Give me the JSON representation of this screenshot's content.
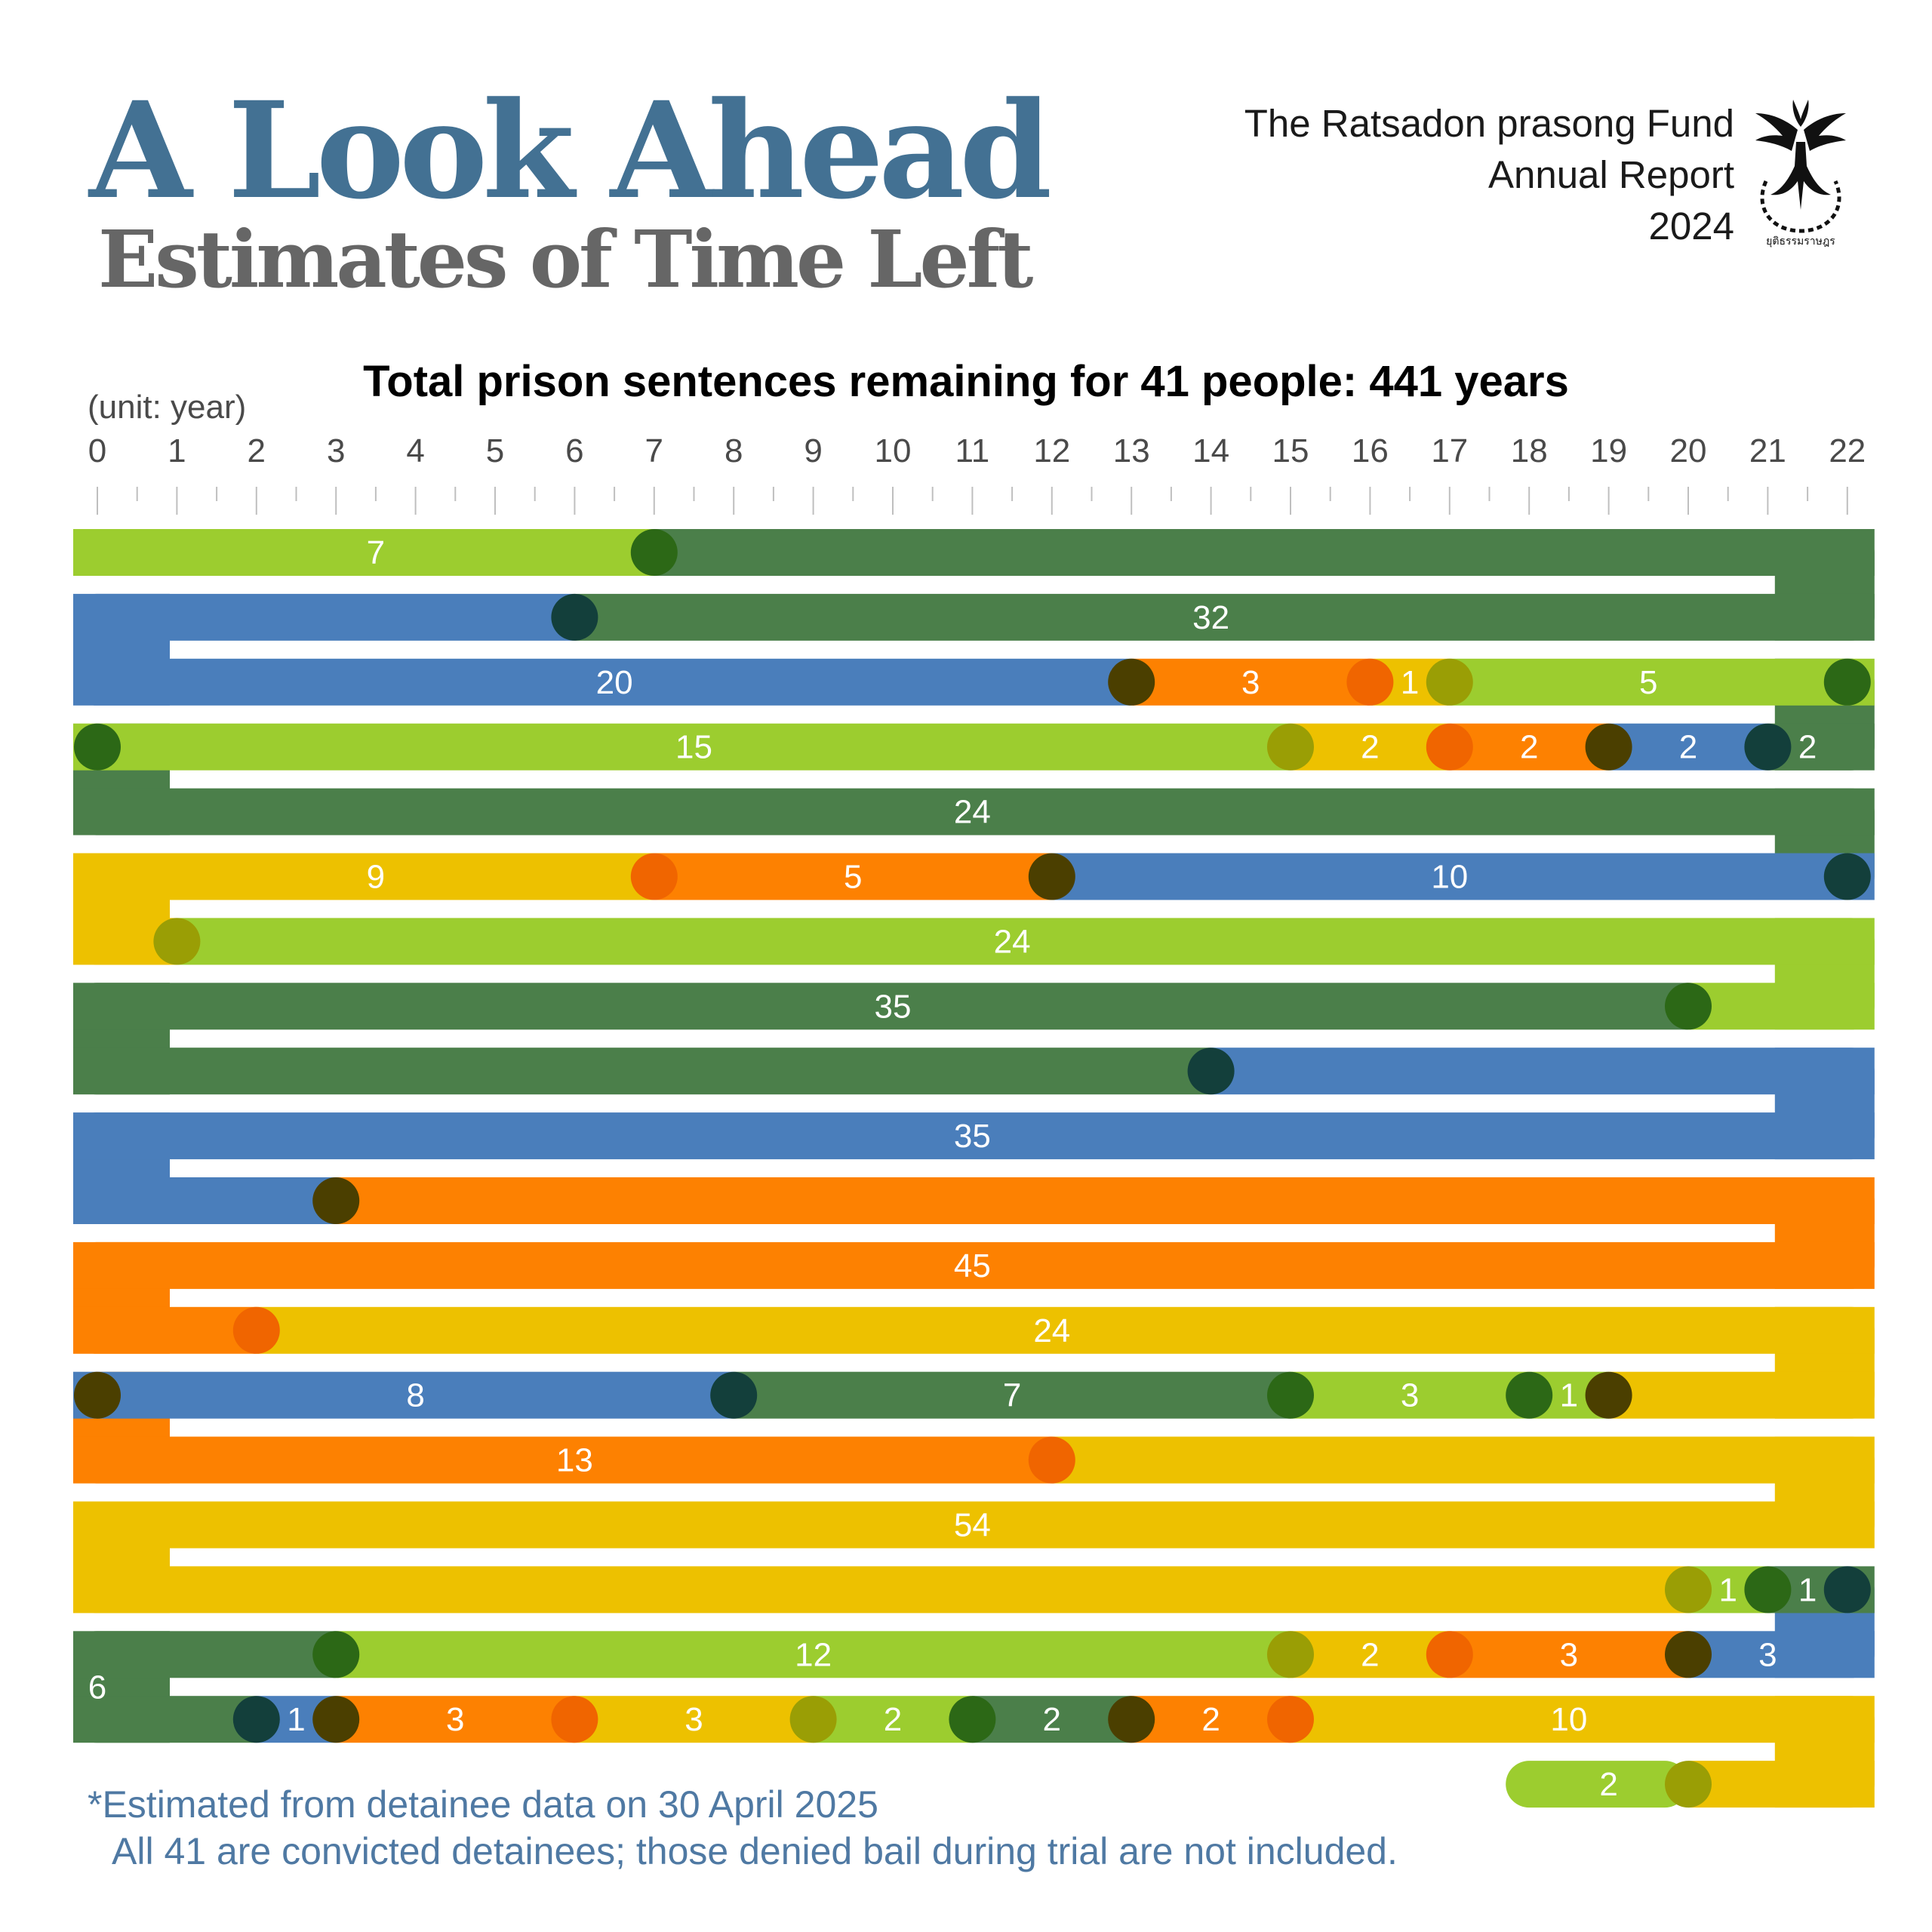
{
  "header": {
    "title": "A Look Ahead",
    "subtitle": "Estimates of Time Left",
    "org_line1": "The Ratsadon prasong Fund",
    "org_line2": "Annual Report",
    "org_line3": "2024",
    "logo_caption": "ยุติธรรมราษฎร"
  },
  "footnote": {
    "line1": "*Estimated from detainee data on 30 April 2025",
    "line2": "All 41 are convicted detainees; those denied bail during trial are not included."
  },
  "colors": {
    "lime": "#9ccd2f",
    "green": "#4b7f4a",
    "blue": "#4a7ebb",
    "orange": "#fd8101",
    "yellow": "#edc100",
    "dot_olive": "#9a9e05",
    "dot_green": "#2c6816",
    "dot_teal": "#133f3b",
    "dot_brown": "#4b3f00",
    "dot_orange": "#f06500"
  },
  "chart_data": {
    "type": "snake-bar",
    "title": "Total prison sentences remaining for 41 people: 441 years",
    "unit_label": "(unit: year)",
    "x_axis": {
      "min": 0,
      "max": 22,
      "ticks": [
        0,
        1,
        2,
        3,
        4,
        5,
        6,
        7,
        8,
        9,
        10,
        11,
        12,
        13,
        14,
        15,
        16,
        17,
        18,
        19,
        20,
        21,
        22
      ]
    },
    "total_people": 41,
    "total_years": 441,
    "rows": [
      {
        "row": 1,
        "segments": [
          {
            "from": 0,
            "to": 7,
            "color": "lime",
            "label": "7"
          },
          {
            "from": 7,
            "to": 22,
            "color": "green",
            "label": ""
          }
        ],
        "dots": [
          {
            "x": 7,
            "color": "dot_green"
          }
        ]
      },
      {
        "row": 2,
        "segments": [
          {
            "from": 0,
            "to": 6,
            "color": "blue",
            "label": ""
          },
          {
            "from": 6,
            "to": 22,
            "color": "green",
            "label": "32"
          }
        ],
        "dots": [
          {
            "x": 6,
            "color": "dot_teal"
          }
        ]
      },
      {
        "row": 3,
        "segments": [
          {
            "from": 0,
            "to": 13,
            "color": "blue",
            "label": "20"
          },
          {
            "from": 13,
            "to": 16,
            "color": "orange",
            "label": "3"
          },
          {
            "from": 16,
            "to": 17,
            "color": "yellow",
            "label": "1"
          },
          {
            "from": 17,
            "to": 22,
            "color": "lime",
            "label": "5"
          }
        ],
        "dots": [
          {
            "x": 13,
            "color": "dot_brown"
          },
          {
            "x": 16,
            "color": "dot_orange"
          },
          {
            "x": 17,
            "color": "dot_olive"
          },
          {
            "x": 22,
            "color": "dot_green"
          }
        ]
      },
      {
        "row": 4,
        "segments": [
          {
            "from": 0,
            "to": 15,
            "color": "lime",
            "label": "15"
          },
          {
            "from": 15,
            "to": 17,
            "color": "yellow",
            "label": "2"
          },
          {
            "from": 17,
            "to": 19,
            "color": "orange",
            "label": "2"
          },
          {
            "from": 19,
            "to": 21,
            "color": "blue",
            "label": "2"
          },
          {
            "from": 21,
            "to": 22,
            "color": "green",
            "label": "2"
          }
        ],
        "dots": [
          {
            "x": 0,
            "color": "dot_green"
          },
          {
            "x": 15,
            "color": "dot_olive"
          },
          {
            "x": 17,
            "color": "dot_orange"
          },
          {
            "x": 19,
            "color": "dot_brown"
          },
          {
            "x": 21,
            "color": "dot_teal"
          }
        ]
      },
      {
        "row": 5,
        "segments": [
          {
            "from": 0,
            "to": 22,
            "color": "green",
            "label": "24"
          }
        ],
        "dots": []
      },
      {
        "row": 6,
        "segments": [
          {
            "from": 0,
            "to": 7,
            "color": "yellow",
            "label": "9"
          },
          {
            "from": 7,
            "to": 12,
            "color": "orange",
            "label": "5"
          },
          {
            "from": 12,
            "to": 22,
            "color": "blue",
            "label": "10"
          }
        ],
        "dots": [
          {
            "x": 7,
            "color": "dot_orange"
          },
          {
            "x": 12,
            "color": "dot_brown"
          },
          {
            "x": 22,
            "color": "dot_teal"
          }
        ]
      },
      {
        "row": 7,
        "segments": [
          {
            "from": 0,
            "to": 1,
            "color": "yellow",
            "label": ""
          },
          {
            "from": 1,
            "to": 22,
            "color": "lime",
            "label": "24"
          }
        ],
        "dots": [
          {
            "x": 1,
            "color": "dot_olive"
          }
        ]
      },
      {
        "row": 8,
        "segments": [
          {
            "from": 0,
            "to": 20,
            "color": "green",
            "label": "35"
          },
          {
            "from": 20,
            "to": 22,
            "color": "lime",
            "label": ""
          }
        ],
        "dots": [
          {
            "x": 20,
            "color": "dot_green"
          }
        ]
      },
      {
        "row": 9,
        "segments": [
          {
            "from": 0,
            "to": 14,
            "color": "green",
            "label": ""
          },
          {
            "from": 14,
            "to": 22,
            "color": "blue",
            "label": ""
          }
        ],
        "dots": [
          {
            "x": 14,
            "color": "dot_teal"
          }
        ]
      },
      {
        "row": 10,
        "segments": [
          {
            "from": 0,
            "to": 22,
            "color": "blue",
            "label": "35"
          }
        ],
        "dots": []
      },
      {
        "row": 11,
        "segments": [
          {
            "from": 0,
            "to": 3,
            "color": "blue",
            "label": ""
          },
          {
            "from": 3,
            "to": 22,
            "color": "orange",
            "label": ""
          }
        ],
        "dots": [
          {
            "x": 3,
            "color": "dot_brown"
          }
        ]
      },
      {
        "row": 12,
        "segments": [
          {
            "from": 0,
            "to": 22,
            "color": "orange",
            "label": "45"
          }
        ],
        "dots": []
      },
      {
        "row": 13,
        "segments": [
          {
            "from": 0,
            "to": 2,
            "color": "orange",
            "label": ""
          },
          {
            "from": 2,
            "to": 22,
            "color": "yellow",
            "label": "24"
          }
        ],
        "dots": [
          {
            "x": 2,
            "color": "dot_orange"
          }
        ]
      },
      {
        "row": 14,
        "segments": [
          {
            "from": 0,
            "to": 8,
            "color": "blue",
            "label": "8"
          },
          {
            "from": 8,
            "to": 15,
            "color": "green",
            "label": "7"
          },
          {
            "from": 15,
            "to": 18,
            "color": "lime",
            "label": "3"
          },
          {
            "from": 18,
            "to": 19,
            "color": "lime",
            "label": "1"
          },
          {
            "from": 19,
            "to": 22,
            "color": "yellow",
            "label": ""
          }
        ],
        "dots": [
          {
            "x": 0,
            "color": "dot_brown"
          },
          {
            "x": 8,
            "color": "dot_teal"
          },
          {
            "x": 15,
            "color": "dot_green"
          },
          {
            "x": 18,
            "color": "dot_green"
          },
          {
            "x": 19,
            "color": "dot_brown"
          }
        ]
      },
      {
        "row": 15,
        "segments": [
          {
            "from": 0,
            "to": 12,
            "color": "orange",
            "label": "13"
          },
          {
            "from": 12,
            "to": 22,
            "color": "yellow",
            "label": ""
          }
        ],
        "dots": [
          {
            "x": 12,
            "color": "dot_orange"
          }
        ]
      },
      {
        "row": 16,
        "segments": [
          {
            "from": 0,
            "to": 22,
            "color": "yellow",
            "label": "54"
          }
        ],
        "dots": []
      },
      {
        "row": 17,
        "segments": [
          {
            "from": 0,
            "to": 20,
            "color": "yellow",
            "label": ""
          },
          {
            "from": 20,
            "to": 21,
            "color": "lime",
            "label": "1"
          },
          {
            "from": 21,
            "to": 22,
            "color": "green",
            "label": "1"
          }
        ],
        "dots": [
          {
            "x": 20,
            "color": "dot_olive"
          },
          {
            "x": 21,
            "color": "dot_green"
          },
          {
            "x": 22,
            "color": "dot_teal"
          }
        ]
      },
      {
        "row": 18,
        "segments": [
          {
            "from": 0,
            "to": 3,
            "color": "green",
            "label": ""
          },
          {
            "from": 3,
            "to": 15,
            "color": "lime",
            "label": "12"
          },
          {
            "from": 15,
            "to": 17,
            "color": "yellow",
            "label": "2"
          },
          {
            "from": 17,
            "to": 20,
            "color": "orange",
            "label": "3"
          },
          {
            "from": 20,
            "to": 22,
            "color": "blue",
            "label": "3"
          }
        ],
        "dots": [
          {
            "x": 3,
            "color": "dot_green"
          },
          {
            "x": 15,
            "color": "dot_olive"
          },
          {
            "x": 17,
            "color": "dot_orange"
          },
          {
            "x": 20,
            "color": "dot_brown"
          }
        ]
      },
      {
        "row": 19,
        "segments": [
          {
            "from": 0,
            "to": 2,
            "color": "green",
            "label": ""
          },
          {
            "from": 2,
            "to": 3,
            "color": "blue",
            "label": "1"
          },
          {
            "from": 3,
            "to": 6,
            "color": "orange",
            "label": "3"
          },
          {
            "from": 6,
            "to": 9,
            "color": "yellow",
            "label": "3"
          },
          {
            "from": 9,
            "to": 11,
            "color": "lime",
            "label": "2"
          },
          {
            "from": 11,
            "to": 13,
            "color": "green",
            "label": "2"
          },
          {
            "from": 13,
            "to": 15,
            "color": "orange",
            "label": "2"
          },
          {
            "from": 15,
            "to": 22,
            "color": "yellow",
            "label": "10"
          }
        ],
        "dots": [
          {
            "x": 2,
            "color": "dot_teal"
          },
          {
            "x": 3,
            "color": "dot_brown"
          },
          {
            "x": 6,
            "color": "dot_orange"
          },
          {
            "x": 9,
            "color": "dot_olive"
          },
          {
            "x": 11,
            "color": "dot_green"
          },
          {
            "x": 13,
            "color": "dot_brown"
          },
          {
            "x": 15,
            "color": "dot_orange"
          }
        ]
      },
      {
        "row": 20,
        "segments": [
          {
            "from": 18,
            "to": 20,
            "color": "lime",
            "label": "2"
          },
          {
            "from": 20,
            "to": 22,
            "color": "yellow",
            "label": ""
          }
        ],
        "dots": [
          {
            "x": 20,
            "color": "dot_olive"
          }
        ]
      }
    ],
    "connectors": [
      {
        "between": [
          1,
          2
        ],
        "side": "right",
        "color": "green"
      },
      {
        "between": [
          2,
          3
        ],
        "side": "left",
        "color": "blue"
      },
      {
        "between": [
          3,
          4
        ],
        "side": "right",
        "color": "green"
      },
      {
        "between": [
          4,
          5
        ],
        "side": "left",
        "color": "green"
      },
      {
        "between": [
          5,
          6
        ],
        "side": "right",
        "color": "green"
      },
      {
        "between": [
          6,
          7
        ],
        "side": "left",
        "color": "yellow"
      },
      {
        "between": [
          7,
          8
        ],
        "side": "right",
        "color": "lime"
      },
      {
        "between": [
          8,
          9
        ],
        "side": "left",
        "color": "green"
      },
      {
        "between": [
          9,
          10
        ],
        "side": "right",
        "color": "blue"
      },
      {
        "between": [
          10,
          11
        ],
        "side": "left",
        "color": "blue"
      },
      {
        "between": [
          11,
          12
        ],
        "side": "right",
        "color": "orange"
      },
      {
        "between": [
          12,
          13
        ],
        "side": "left",
        "color": "orange"
      },
      {
        "between": [
          13,
          14
        ],
        "side": "right",
        "color": "yellow"
      },
      {
        "between": [
          14,
          15
        ],
        "side": "left",
        "color": "orange"
      },
      {
        "between": [
          15,
          16
        ],
        "side": "right",
        "color": "yellow"
      },
      {
        "between": [
          16,
          17
        ],
        "side": "left",
        "color": "yellow"
      },
      {
        "between": [
          17,
          18
        ],
        "side": "right",
        "color": "blue"
      },
      {
        "between": [
          18,
          19
        ],
        "side": "left",
        "color": "green",
        "label": "6"
      },
      {
        "between": [
          19,
          20
        ],
        "side": "right",
        "color": "yellow"
      }
    ]
  }
}
